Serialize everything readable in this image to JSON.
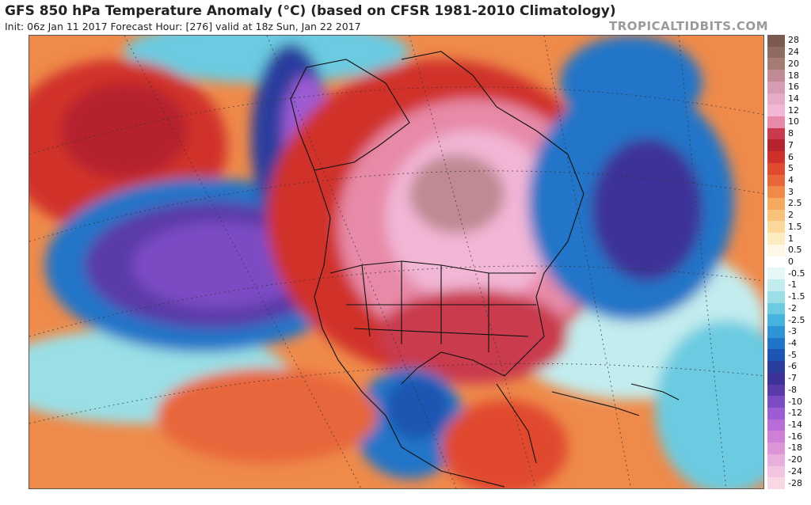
{
  "header": {
    "title": "GFS 850 hPa Temperature Anomaly (°C) (based on CFSR 1981-2010 Climatology)",
    "subtitle": "Init: 06z Jan 11 2017   Forecast Hour: [276]   valid at 18z Sun, Jan 22 2017",
    "brand": "TROPICALTIDBITS.COM"
  },
  "legend": [
    {
      "label": "28",
      "color": "#7a5a4e"
    },
    {
      "label": "24",
      "color": "#8e6a60"
    },
    {
      "label": "20",
      "color": "#a57c74"
    },
    {
      "label": "18",
      "color": "#bf8a93"
    },
    {
      "label": "16",
      "color": "#d49bb2"
    },
    {
      "label": "14",
      "color": "#e6a9c8"
    },
    {
      "label": "12",
      "color": "#f2b6d6"
    },
    {
      "label": "10",
      "color": "#e78aa8"
    },
    {
      "label": "8",
      "color": "#c93a4e"
    },
    {
      "label": "7",
      "color": "#b5232e"
    },
    {
      "label": "6",
      "color": "#d0302a"
    },
    {
      "label": "5",
      "color": "#e04a2e"
    },
    {
      "label": "4",
      "color": "#e8663a"
    },
    {
      "label": "3",
      "color": "#ef8a4a"
    },
    {
      "label": "2.5",
      "color": "#f5a860"
    },
    {
      "label": "2",
      "color": "#f8c27a"
    },
    {
      "label": "1.5",
      "color": "#fbd89a"
    },
    {
      "label": "1",
      "color": "#fdebc2"
    },
    {
      "label": "0.5",
      "color": "#fff8e6"
    },
    {
      "label": "0",
      "color": "#ffffff"
    },
    {
      "label": "-0.5",
      "color": "#e6f7f7"
    },
    {
      "label": "-1",
      "color": "#c2ecee"
    },
    {
      "label": "-1.5",
      "color": "#9adfe6"
    },
    {
      "label": "-2",
      "color": "#6ccbe0"
    },
    {
      "label": "-2.5",
      "color": "#46b2de"
    },
    {
      "label": "-3",
      "color": "#2f94d6"
    },
    {
      "label": "-4",
      "color": "#2074c8"
    },
    {
      "label": "-5",
      "color": "#1c55b2"
    },
    {
      "label": "-6",
      "color": "#2a3e9e"
    },
    {
      "label": "-7",
      "color": "#3c3298"
    },
    {
      "label": "-8",
      "color": "#5a3aa8"
    },
    {
      "label": "-10",
      "color": "#7c4cc4"
    },
    {
      "label": "-12",
      "color": "#9c5cd4"
    },
    {
      "label": "-14",
      "color": "#b86cd8"
    },
    {
      "label": "-16",
      "color": "#cf80d6"
    },
    {
      "label": "-18",
      "color": "#dc96d8"
    },
    {
      "label": "-20",
      "color": "#e8aedc"
    },
    {
      "label": "-24",
      "color": "#f2c4e0"
    },
    {
      "label": "-28",
      "color": "#f8d8e4"
    }
  ]
}
